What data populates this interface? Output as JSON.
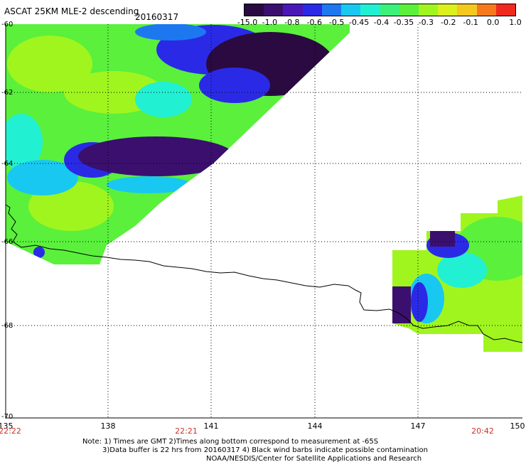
{
  "title": "ASCAT 25KM MLE-2 descending",
  "date": "20160317",
  "colorbar": {
    "labels": [
      "-15.0",
      "-1.0",
      "-0.8",
      "-0.6",
      "-0.5",
      "-0.45",
      "-0.4",
      "-0.35",
      "-0.3",
      "-0.2",
      "-0.1",
      "0.0",
      "1.0"
    ],
    "colors": [
      "#2a0a40",
      "#3b0f6e",
      "#4b18b8",
      "#2a2ae6",
      "#1d78f0",
      "#19c8f0",
      "#22f0d2",
      "#3cf07a",
      "#5af03c",
      "#a0f51e",
      "#dcf01e",
      "#f5c81e",
      "#f57a1e",
      "#f02a1e"
    ]
  },
  "map": {
    "lat_labels": [
      "-60",
      "-62",
      "-64",
      "-66",
      "-68",
      "-70"
    ],
    "lon_labels": [
      "135",
      "138",
      "141",
      "144",
      "147",
      "150"
    ],
    "time_labels": [
      "22:22",
      "22:21",
      "20:42"
    ]
  },
  "footer": {
    "line1": "Note: 1) Times are GMT 2)Times along bottom correspond to measurement at -65S",
    "line2": "3)Data buffer is 22 hrs from 20160317 4) Black wind barbs indicate possible contamination",
    "line3": "NOAA/NESDIS/Center for Satellite Applications and Research"
  }
}
